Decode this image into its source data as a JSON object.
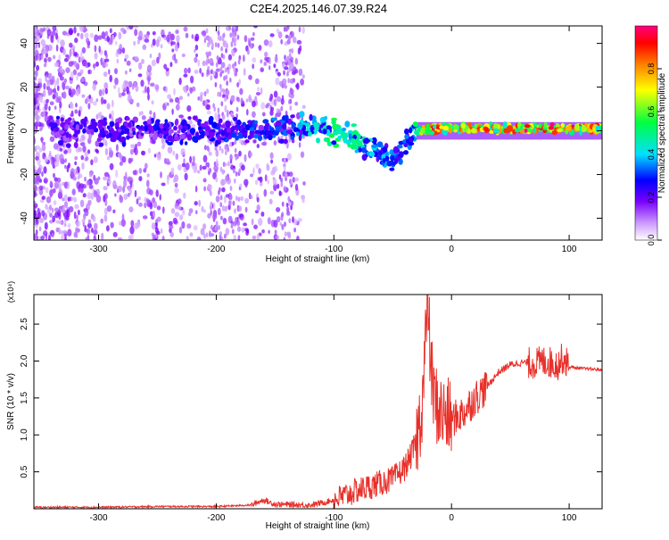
{
  "title": "C2E4.2025.146.07.39.R24",
  "chart_data": [
    {
      "type": "heatmap",
      "xlabel": "Height of straight line (km)",
      "ylabel": "Frequency (Hz)",
      "xlim": [
        -355,
        128
      ],
      "ylim": [
        -50,
        48
      ],
      "xticks": [
        -300,
        -200,
        -100,
        0,
        100
      ],
      "yticks": [
        -40,
        -20,
        0,
        20,
        40
      ],
      "colorbar": {
        "label": "Normalized spectral amplitude",
        "range": [
          0,
          1
        ],
        "ticks": [
          0.0,
          0.2,
          0.4,
          0.6,
          0.8
        ]
      },
      "trace": {
        "x": [
          -300,
          -250,
          -200,
          -170,
          -140,
          -120,
          -100,
          -90,
          -80,
          -70,
          -60,
          -50,
          -40,
          -30,
          -20,
          0,
          50,
          100,
          128
        ],
        "center": [
          0,
          0,
          0,
          0,
          1,
          2,
          0,
          -2,
          -4,
          -8,
          -10,
          -14,
          -5,
          0,
          1,
          1,
          1,
          1,
          1
        ],
        "amplitude": [
          0.25,
          0.28,
          0.3,
          0.32,
          0.35,
          0.45,
          0.55,
          0.6,
          0.5,
          0.45,
          0.4,
          0.35,
          0.35,
          0.55,
          0.95,
          0.85,
          0.95,
          0.95,
          0.9
        ]
      },
      "grid": false
    },
    {
      "type": "line",
      "xlabel": "Height of straight line (km)",
      "ylabel": "SNR (10 * v/v)",
      "y_multiplier": "(x10⁴)",
      "xlim": [
        -355,
        128
      ],
      "ylim": [
        0,
        2.9
      ],
      "xticks": [
        -300,
        -200,
        -100,
        0,
        100
      ],
      "yticks": [
        0.5,
        1.0,
        1.5,
        2.0,
        2.5
      ],
      "series": [
        {
          "color": "#e8302a",
          "x": [
            -355,
            -300,
            -250,
            -200,
            -170,
            -160,
            -150,
            -120,
            -110,
            -100,
            -90,
            -80,
            -70,
            -60,
            -50,
            -40,
            -35,
            -30,
            -25,
            -22,
            -20,
            -18,
            -15,
            -10,
            -5,
            0,
            10,
            20,
            30,
            40,
            50,
            60,
            70,
            80,
            90,
            95,
            100,
            110,
            128
          ],
          "y": [
            0.02,
            0.02,
            0.03,
            0.03,
            0.05,
            0.12,
            0.06,
            0.05,
            0.08,
            0.12,
            0.18,
            0.25,
            0.3,
            0.35,
            0.4,
            0.55,
            0.7,
            0.9,
            1.4,
            2.3,
            2.9,
            2.0,
            1.5,
            1.3,
            1.25,
            1.2,
            1.3,
            1.5,
            1.65,
            1.85,
            1.95,
            1.98,
            1.97,
            2.0,
            1.95,
            2.05,
            1.92,
            1.9,
            1.88
          ]
        }
      ]
    }
  ]
}
